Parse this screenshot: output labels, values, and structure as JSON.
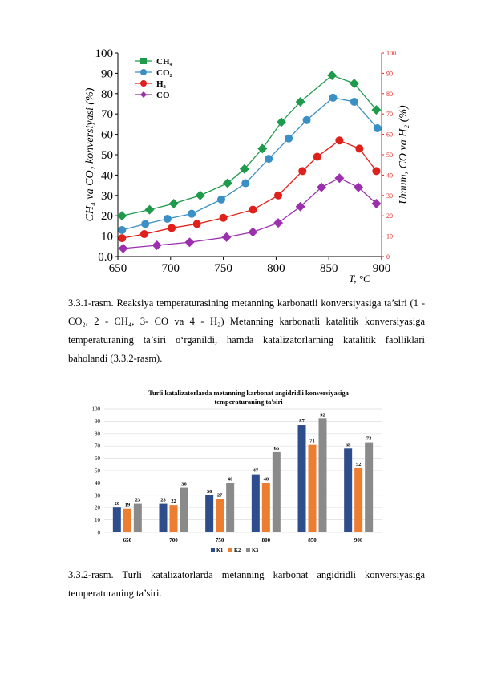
{
  "chart_data": [
    {
      "type": "line",
      "x_label": "T, °C",
      "y_label": "CH₄ va CO₂ konversiyasi (%)",
      "y2_label": "Umum, CO va H₂ (%)",
      "xlim": [
        650,
        900
      ],
      "xticks": [
        650,
        700,
        750,
        800,
        850,
        900
      ],
      "ylim": [
        0,
        100
      ],
      "yticks": [
        {
          "value": 0,
          "label": "0.0"
        },
        10,
        20,
        30,
        40,
        50,
        60,
        70,
        80,
        90,
        100
      ],
      "y2lim": [
        0,
        100
      ],
      "y2ticks": [
        0,
        10,
        20,
        30,
        40,
        50,
        60,
        70,
        80,
        90,
        100
      ],
      "legend": "top-left",
      "series": [
        {
          "name": "CH₄",
          "color": "#1e9a4b",
          "marker": "diamond",
          "x": [
            654,
            680,
            703,
            728,
            754,
            770,
            787,
            805,
            823,
            853,
            874,
            895
          ],
          "values": [
            20,
            23,
            26,
            30,
            36,
            43,
            53,
            66,
            76,
            89,
            85,
            72
          ]
        },
        {
          "name": "CO₂",
          "color": "#3a8fc4",
          "marker": "circle",
          "x": [
            654,
            676,
            697,
            720,
            748,
            771,
            793,
            812,
            829,
            854,
            874,
            896
          ],
          "values": [
            13,
            16,
            18.5,
            21,
            28,
            36,
            48,
            58,
            67,
            78,
            76,
            63
          ]
        },
        {
          "name": "H₂",
          "color": "#e0201b",
          "marker": "circle",
          "axis": "y2",
          "x": [
            654,
            675,
            701,
            725,
            750,
            778,
            802,
            825,
            839,
            860,
            879,
            895
          ],
          "values": [
            9,
            11,
            14,
            16,
            19,
            23,
            30,
            42,
            49,
            57,
            53,
            42
          ]
        },
        {
          "name": "CO",
          "color": "#9b2fae",
          "marker": "diamond",
          "axis": "y2",
          "x": [
            655,
            687,
            718,
            753,
            778,
            802,
            823,
            843,
            860,
            878,
            895
          ],
          "values": [
            4,
            5.5,
            7,
            9.5,
            12,
            16.5,
            24.5,
            34,
            38.5,
            34,
            26
          ]
        }
      ]
    },
    {
      "type": "bar",
      "title": "Turli katalizatorlarda metanning karbonat angidridli konversiyasiga temperaturaning ta'siri",
      "categories": [
        "650",
        "700",
        "750",
        "800",
        "850",
        "900"
      ],
      "ylim": [
        0,
        100
      ],
      "yticks": [
        0,
        10,
        20,
        30,
        40,
        50,
        60,
        70,
        80,
        90,
        100
      ],
      "grid": true,
      "legend": "bottom",
      "series": [
        {
          "name": "K1",
          "color": "#2e4d8c",
          "values": [
            20,
            23,
            30,
            47,
            87,
            68
          ]
        },
        {
          "name": "K2",
          "color": "#ed7d31",
          "values": [
            19,
            22,
            27,
            40,
            71,
            52
          ]
        },
        {
          "name": "K3",
          "color": "#8a8a8a",
          "values": [
            23,
            36,
            40,
            65,
            92,
            73
          ]
        }
      ]
    }
  ],
  "paragraphs": [
    "3.3.1-rasm. Reaksiya temperaturasining metanning karbonatli konversiyasiga ta’siri (1 - CO₂, 2 - CH₄, 3- CO va 4 - H₂) Metanning karbonatli katalitik konversiyasiga temperaturaning ta’siri o‘rganildi, hamda katalizatorlarning katalitik faolliklari baholandi (3.3.2-rasm).",
    "3.3.2-rasm. Turli katalizatorlarda metanning karbonat angidridli konversiyasiga temperaturaning ta’siri."
  ]
}
